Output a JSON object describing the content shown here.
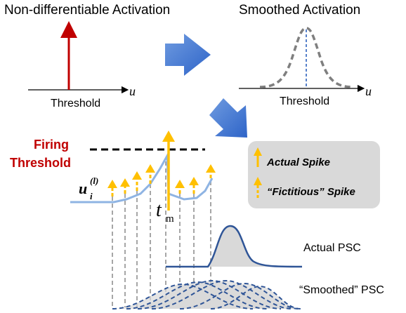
{
  "top_left": {
    "title": "Non-differentiable Activation",
    "x_label": "Threshold",
    "axis_var": "u"
  },
  "top_right": {
    "title": "Smoothed Activation",
    "x_label": "Threshold",
    "axis_var": "u"
  },
  "firing_threshold": {
    "line1": "Firing",
    "line2": "Threshold"
  },
  "membrane": {
    "var": "u",
    "subscript": "i",
    "superscript": "(l)"
  },
  "time_marker": {
    "var": "t",
    "subscript": "m"
  },
  "legend": {
    "actual": "Actual Spike",
    "fictitious": "“Fictitious” Spike"
  },
  "psc": {
    "actual": "Actual PSC",
    "smoothed": "“Smoothed” PSC"
  },
  "colors": {
    "red": "#c00000",
    "blue": "#4472c4",
    "dark_blue": "#2f5597",
    "orange": "#ffc000",
    "gray": "#a6a6a6"
  }
}
